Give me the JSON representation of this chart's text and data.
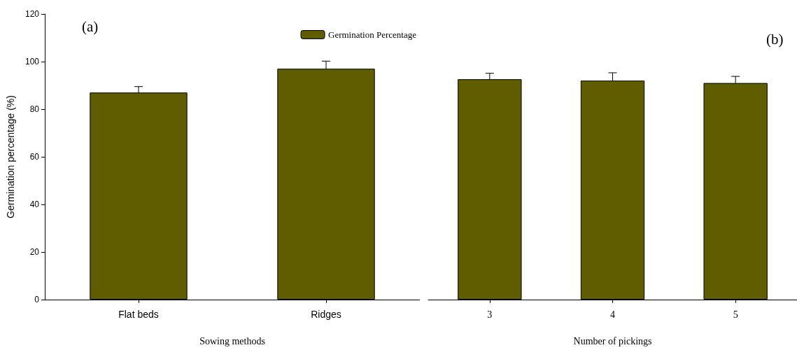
{
  "chart_data": [
    {
      "type": "bar",
      "ylabel": "Germination percentage (%)",
      "xlabel": "Sowing methods",
      "annotations": [
        "(a)"
      ],
      "categories": [
        "Flat beds",
        "Ridges"
      ],
      "series": [
        {
          "name": "Germination Percentage",
          "color": "#605c00",
          "values": [
            87,
            97
          ],
          "errors": [
            [
              87,
              89.5
            ],
            [
              97,
              100.2
            ]
          ]
        }
      ],
      "ylim": [
        0,
        120
      ],
      "yticks": [
        0,
        20,
        40,
        60,
        80,
        100,
        120
      ],
      "legend": "top right",
      "grid": false
    },
    {
      "type": "bar",
      "xlabel": "Number of pickings",
      "annotations": [
        "(b)"
      ],
      "categories": [
        "3",
        "4",
        "5"
      ],
      "series": [
        {
          "color": "#605c00",
          "values": [
            92.6,
            92,
            91
          ],
          "errors": [
            [
              92.6,
              95.1
            ],
            [
              92,
              95.3
            ],
            [
              91,
              93.8
            ]
          ]
        }
      ],
      "ylim": [
        0,
        120
      ],
      "yticks": [
        0,
        20,
        40,
        60,
        80,
        100,
        120
      ],
      "tick_labels": "x",
      "grid": false
    }
  ]
}
